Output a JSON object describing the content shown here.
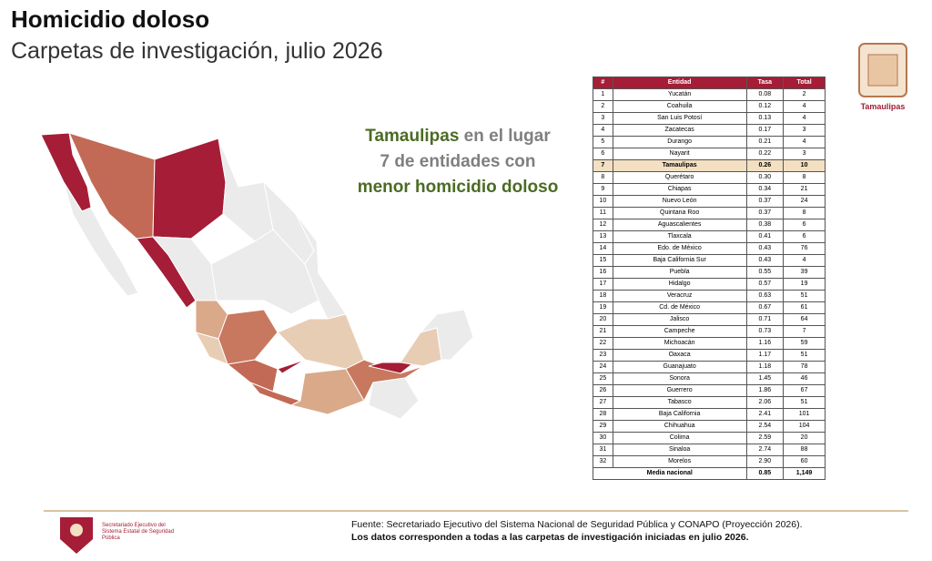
{
  "header": {
    "title": "Homicidio doloso",
    "subtitle": "Carpetas de investigación, julio 2026"
  },
  "highlight": {
    "state": "Tamaulipas",
    "line1_rest": " en el lugar",
    "line2": "7 de entidades con",
    "line3": "menor homicidio doloso"
  },
  "emblem": {
    "label": "Tamaulipas"
  },
  "table": {
    "header": [
      "#",
      "Entidad",
      "Tasa",
      "Total"
    ],
    "rows": [
      [
        "1",
        "Yucatán",
        "0.08",
        "2"
      ],
      [
        "2",
        "Coahuila",
        "0.12",
        "4"
      ],
      [
        "3",
        "San Luis Potosí",
        "0.13",
        "4"
      ],
      [
        "4",
        "Zacatecas",
        "0.17",
        "3"
      ],
      [
        "5",
        "Durango",
        "0.21",
        "4"
      ],
      [
        "6",
        "Nayarit",
        "0.22",
        "3"
      ],
      [
        "7",
        "Tamaulipas",
        "0.26",
        "10"
      ],
      [
        "8",
        "Querétaro",
        "0.30",
        "8"
      ],
      [
        "9",
        "Chiapas",
        "0.34",
        "21"
      ],
      [
        "10",
        "Nuevo León",
        "0.37",
        "24"
      ],
      [
        "11",
        "Quintana Roo",
        "0.37",
        "8"
      ],
      [
        "12",
        "Aguascalientes",
        "0.38",
        "6"
      ],
      [
        "13",
        "Tlaxcala",
        "0.41",
        "6"
      ],
      [
        "14",
        "Edo. de México",
        "0.43",
        "76"
      ],
      [
        "15",
        "Baja California Sur",
        "0.43",
        "4"
      ],
      [
        "16",
        "Puebla",
        "0.55",
        "39"
      ],
      [
        "17",
        "Hidalgo",
        "0.57",
        "19"
      ],
      [
        "18",
        "Veracruz",
        "0.63",
        "51"
      ],
      [
        "19",
        "Cd. de México",
        "0.67",
        "61"
      ],
      [
        "20",
        "Jalisco",
        "0.71",
        "64"
      ],
      [
        "21",
        "Campeche",
        "0.73",
        "7"
      ],
      [
        "22",
        "Michoacán",
        "1.16",
        "59"
      ],
      [
        "23",
        "Oaxaca",
        "1.17",
        "51"
      ],
      [
        "24",
        "Guanajuato",
        "1.18",
        "78"
      ],
      [
        "25",
        "Sonora",
        "1.45",
        "46"
      ],
      [
        "26",
        "Guerrero",
        "1.86",
        "67"
      ],
      [
        "27",
        "Tabasco",
        "2.06",
        "51"
      ],
      [
        "28",
        "Baja California",
        "2.41",
        "101"
      ],
      [
        "29",
        "Chihuahua",
        "2.54",
        "104"
      ],
      [
        "30",
        "Colima",
        "2.59",
        "20"
      ],
      [
        "31",
        "Sinaloa",
        "2.74",
        "88"
      ],
      [
        "32",
        "Morelos",
        "2.90",
        "60"
      ]
    ],
    "highlight_row": 6,
    "footer": [
      "Media nacional",
      "0.85",
      "1,149"
    ]
  },
  "footer": {
    "logo_text": "Secretariado Ejecutivo del Sistema Estatal de Seguridad Pública",
    "source": "Fuente: Secretariado Ejecutivo del Sistema Nacional de Seguridad Pública y CONAPO (Proyección 2026).",
    "note": "Los datos corresponden a todas a las carpetas de investigación iniciadas en julio 2026."
  }
}
